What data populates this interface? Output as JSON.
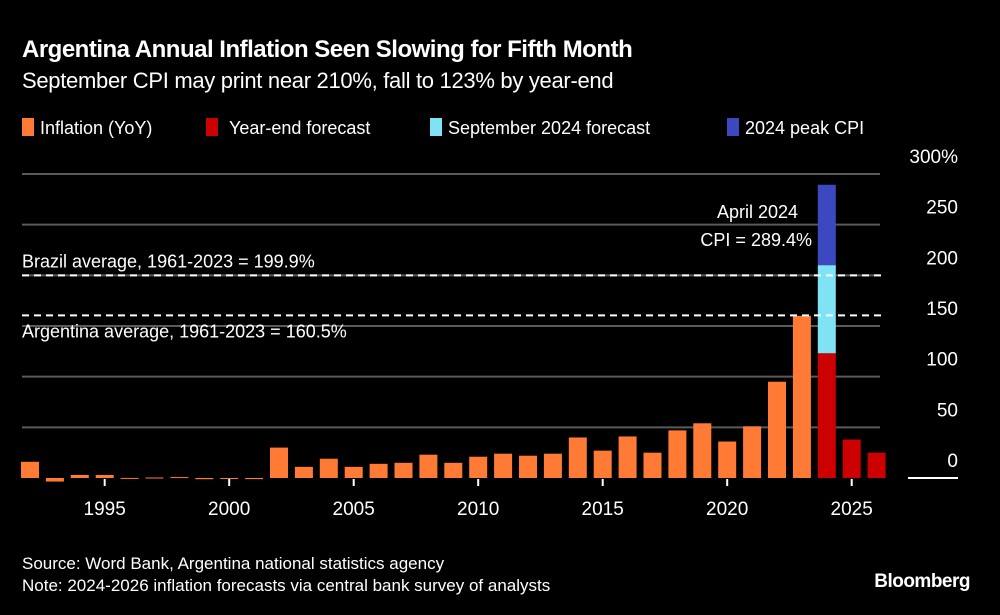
{
  "colors": {
    "background": "#000000",
    "inflation": "#ff7a35",
    "year_end_forecast": "#cc0000",
    "september_forecast": "#7fe3f5",
    "peak_cpi": "#3b48bf",
    "grid": "#5a5a5a"
  },
  "chart_data": {
    "type": "bar",
    "title": "Argentina Annual Inflation Seen Slowing for Fifth Month",
    "subtitle": "September CPI may print near 210%, fall to 123% by year-end",
    "legend": [
      {
        "label": "Inflation (YoY)",
        "color": "#ff7a35"
      },
      {
        "label": "Year-end forecast",
        "color": "#cc0000"
      },
      {
        "label": "September 2024 forecast",
        "color": "#7fe3f5"
      },
      {
        "label": "2024 peak CPI",
        "color": "#3b48bf"
      }
    ],
    "legend_placement": "top-left",
    "ylim": [
      0,
      300
    ],
    "y_axis_side": "right",
    "y_ticks": [
      0,
      50,
      100,
      150,
      200,
      250,
      300
    ],
    "y_tick_labels": [
      "0",
      "50",
      "100",
      "150",
      "200",
      "250",
      "300%"
    ],
    "x_ticks": [
      1995,
      2000,
      2005,
      2010,
      2015,
      2020,
      2025
    ],
    "x_tick_labels": [
      "1995",
      "2000",
      "2005",
      "2010",
      "2015",
      "2020",
      "2025"
    ],
    "grid": true,
    "series": [
      {
        "name": "Inflation (YoY)",
        "x": [
          1992,
          1993,
          1994,
          1995,
          1996,
          1997,
          1998,
          1999,
          2000,
          2001,
          2002,
          2003,
          2004,
          2005,
          2006,
          2007,
          2008,
          2009,
          2010,
          2011,
          2012,
          2013,
          2014,
          2015,
          2016,
          2017,
          2018,
          2019,
          2020,
          2021,
          2022,
          2023
        ],
        "values": [
          16,
          -3.5,
          3,
          3,
          0.1,
          0.5,
          0.9,
          -1.2,
          -0.9,
          -1.1,
          30,
          11,
          19,
          11,
          14,
          15,
          23,
          15,
          21,
          24,
          22,
          24,
          40,
          27,
          41,
          25,
          47,
          54,
          36,
          51,
          95,
          160
        ]
      },
      {
        "name": "Year-end forecast",
        "x": [
          2024,
          2025,
          2026
        ],
        "values": [
          123,
          38,
          25
        ]
      },
      {
        "name": "September 2024 forecast",
        "x": [
          2024
        ],
        "values": [
          210
        ]
      },
      {
        "name": "2024 peak CPI",
        "x": [
          2024
        ],
        "values": [
          289.4
        ]
      }
    ],
    "reference_lines": [
      {
        "label": "Brazil average, 1961-2023 = 199.9%",
        "value": 199.9
      },
      {
        "label": "Argentina average, 1961-2023 = 160.5%",
        "value": 160.5
      }
    ],
    "annotations": [
      {
        "line1": "April 2024",
        "line2": "CPI = 289.4%"
      }
    ]
  },
  "footer": {
    "source": "Source: Word Bank, Argentina national statistics agency",
    "note": "Note: 2024-2026 inflation forecasts via central bank survey of analysts",
    "brand": "Bloomberg"
  }
}
